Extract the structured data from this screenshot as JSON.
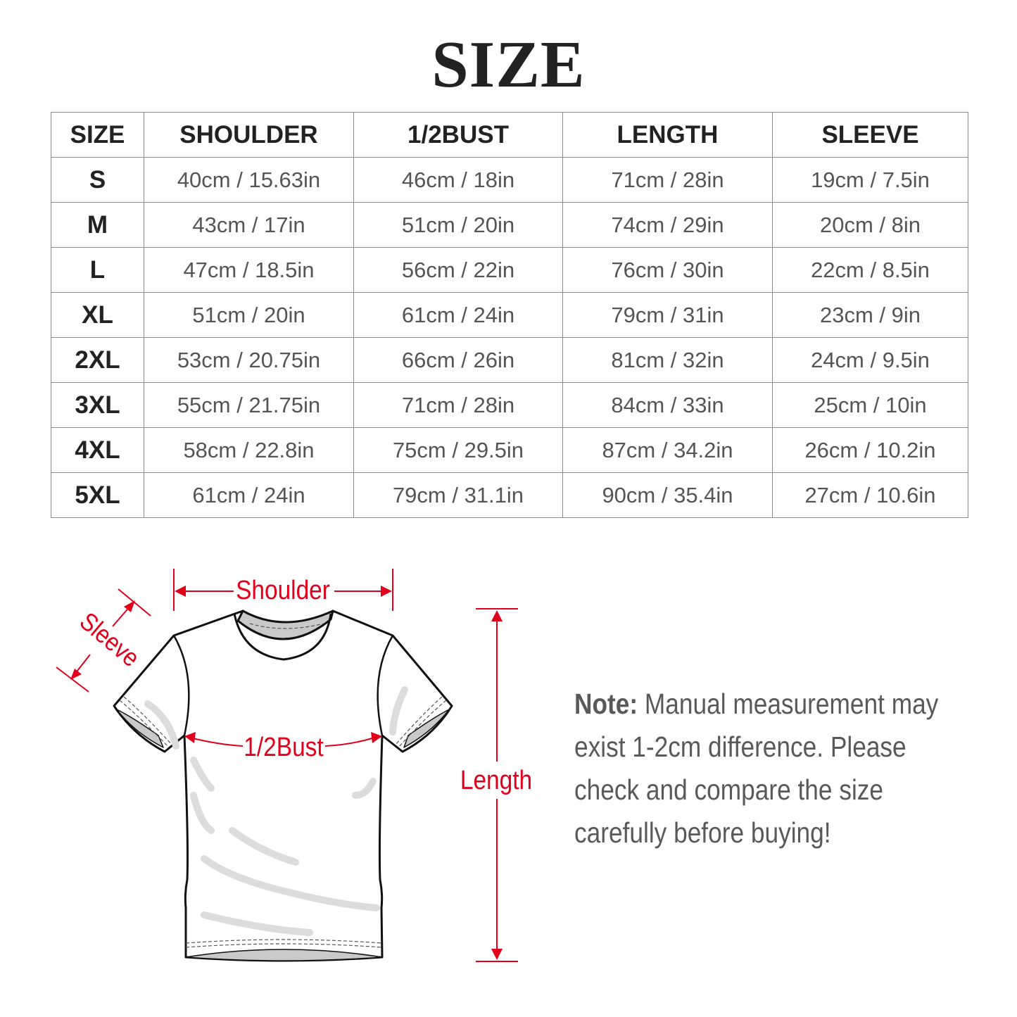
{
  "title": "SIZE",
  "table": {
    "headers": [
      "SIZE",
      "SHOULDER",
      "1/2BUST",
      "LENGTH",
      "SLEEVE"
    ],
    "rows": [
      [
        "S",
        "40cm / 15.63in",
        "46cm / 18in",
        "71cm / 28in",
        "19cm / 7.5in"
      ],
      [
        "M",
        "43cm / 17in",
        "51cm / 20in",
        "74cm / 29in",
        "20cm / 8in"
      ],
      [
        "L",
        "47cm / 18.5in",
        "56cm / 22in",
        "76cm / 30in",
        "22cm / 8.5in"
      ],
      [
        "XL",
        "51cm / 20in",
        "61cm / 24in",
        "79cm / 31in",
        "23cm / 9in"
      ],
      [
        "2XL",
        "53cm / 20.75in",
        "66cm / 26in",
        "81cm / 32in",
        "24cm / 9.5in"
      ],
      [
        "3XL",
        "55cm / 21.75in",
        "71cm / 28in",
        "84cm / 33in",
        "25cm / 10in"
      ],
      [
        "4XL",
        "58cm / 22.8in",
        "75cm / 29.5in",
        "87cm / 34.2in",
        "26cm / 10.2in"
      ],
      [
        "5XL",
        "61cm / 24in",
        "79cm / 31.1in",
        "90cm / 35.4in",
        "27cm / 10.6in"
      ]
    ]
  },
  "diagram": {
    "shoulder_label": "Shoulder",
    "sleeve_label": "Sleeve",
    "bust_label": "1/2Bust",
    "length_label": "Length",
    "accent_color": "#e0001b"
  },
  "note": {
    "label": "Note:",
    "text": " Manual measurement may exist 1-2cm difference. Please check and compare the size carefully before buying!"
  }
}
